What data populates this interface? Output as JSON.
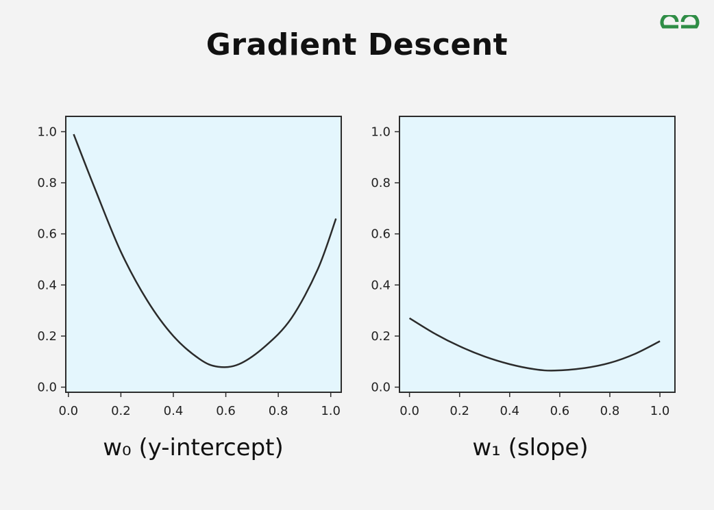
{
  "title": "Gradient Descent",
  "logo": {
    "icon": "gfg-logo-icon",
    "color": "#2f8d46"
  },
  "colors": {
    "background": "#f3f3f3",
    "plot_bg": "#e4f6fd",
    "curve": "#2b2b2b",
    "axis": "#2b2b2b"
  },
  "chart_data": [
    {
      "type": "line",
      "title": "",
      "xlabel": "w₀ (y-intercept)",
      "ylabel": "",
      "xlim": [
        -0.01,
        1.04
      ],
      "ylim": [
        -0.02,
        1.06
      ],
      "xticks": [
        0.0,
        0.2,
        0.4,
        0.6,
        0.8,
        1.0
      ],
      "yticks": [
        0.0,
        0.2,
        0.4,
        0.6,
        0.8,
        1.0
      ],
      "xtick_labels": [
        "0.0",
        "0.2",
        "0.4",
        "0.6",
        "0.8",
        "1.0"
      ],
      "ytick_labels": [
        "0.0",
        "0.2",
        "0.4",
        "0.6",
        "0.8",
        "1.0"
      ],
      "grid": false,
      "series": [
        {
          "x": [
            0.02,
            0.1,
            0.2,
            0.3,
            0.4,
            0.5,
            0.57,
            0.65,
            0.75,
            0.85,
            0.95,
            1.02
          ],
          "y": [
            0.99,
            0.78,
            0.53,
            0.34,
            0.2,
            0.11,
            0.08,
            0.09,
            0.16,
            0.27,
            0.46,
            0.66
          ]
        }
      ]
    },
    {
      "type": "line",
      "title": "",
      "xlabel": "w₁ (slope)",
      "ylabel": "",
      "xlim": [
        -0.04,
        1.06
      ],
      "ylim": [
        -0.02,
        1.06
      ],
      "xticks": [
        0.0,
        0.2,
        0.4,
        0.6,
        0.8,
        1.0
      ],
      "yticks": [
        0.0,
        0.2,
        0.4,
        0.6,
        0.8,
        1.0
      ],
      "xtick_labels": [
        "0.0",
        "0.2",
        "0.4",
        "0.6",
        "0.8",
        "1.0"
      ],
      "ytick_labels": [
        "0.0",
        "0.2",
        "0.4",
        "0.6",
        "0.8",
        "1.0"
      ],
      "grid": false,
      "series": [
        {
          "x": [
            0.0,
            0.1,
            0.2,
            0.3,
            0.4,
            0.5,
            0.58,
            0.7,
            0.8,
            0.9,
            1.0
          ],
          "y": [
            0.27,
            0.21,
            0.16,
            0.12,
            0.09,
            0.07,
            0.065,
            0.075,
            0.095,
            0.13,
            0.18
          ]
        }
      ]
    }
  ]
}
